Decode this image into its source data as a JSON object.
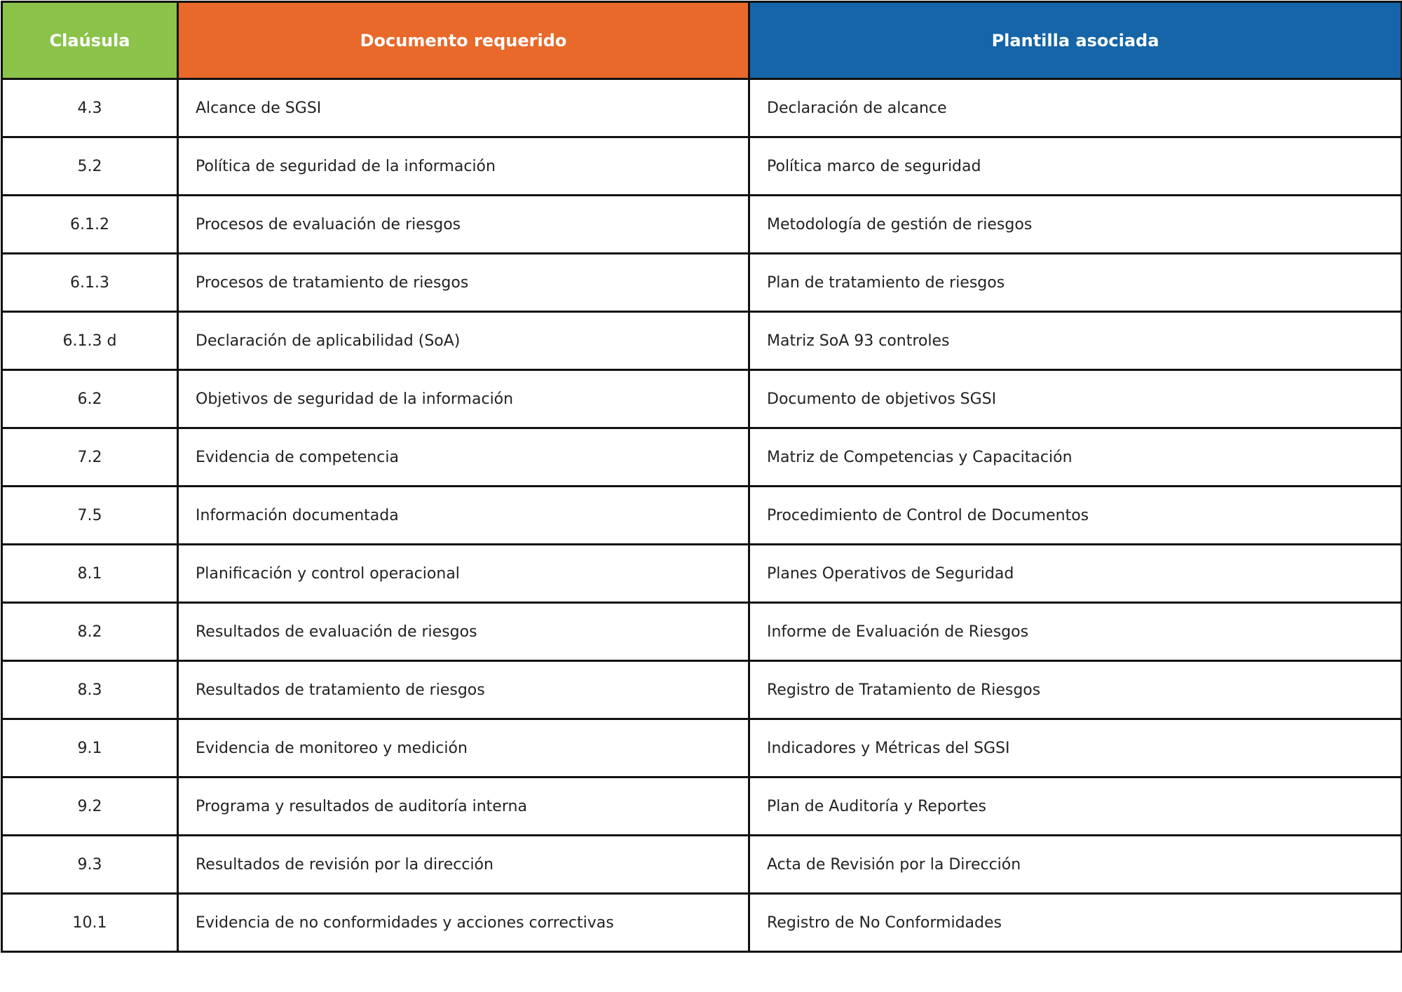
{
  "header": {
    "columns": [
      "Claúsula",
      "Documento requerido",
      "Plantilla asociada"
    ]
  },
  "table": {
    "rows": [
      [
        "4.3",
        "Alcance de SGSI",
        "Declaración de alcance"
      ],
      [
        "5.2",
        "Política de seguridad de la información",
        "Política marco de seguridad"
      ],
      [
        "6.1.2",
        "Procesos de evaluación de riesgos",
        "Metodología de gestión de riesgos"
      ],
      [
        "6.1.3",
        "Procesos de tratamiento de riesgos",
        "Plan de tratamiento de riesgos"
      ],
      [
        "6.1.3 d",
        "Declaración de aplicabilidad (SoA)",
        "Matriz SoA 93 controles"
      ],
      [
        "6.2",
        "Objetivos de seguridad de la información",
        "Documento de objetivos SGSI"
      ],
      [
        "7.2",
        "Evidencia de competencia",
        "Matriz de Competencias y Capacitación"
      ],
      [
        "7.5",
        "Información documentada",
        "Procedimiento de Control de Documentos"
      ],
      [
        "8.1",
        "Planificación y control operacional",
        "Planes Operativos de Seguridad"
      ],
      [
        "8.2",
        "Resultados de evaluación de riesgos",
        "Informe de Evaluación de Riesgos"
      ],
      [
        "8.3",
        "Resultados de tratamiento de riesgos",
        "Registro de Tratamiento de Riesgos"
      ],
      [
        "9.1",
        "Evidencia de monitoreo y medición",
        "Indicadores y Métricas del SGSI"
      ],
      [
        "9.2",
        "Programa y resultados de auditoría interna",
        "Plan de Auditoría y Reportes"
      ],
      [
        "9.3",
        "Resultados de revisión por la dirección",
        "Acta de Revisión por la Dirección"
      ],
      [
        "10.1",
        "Evidencia de no conformidades y acciones correctivas",
        "Registro de No Conformidades"
      ]
    ]
  }
}
